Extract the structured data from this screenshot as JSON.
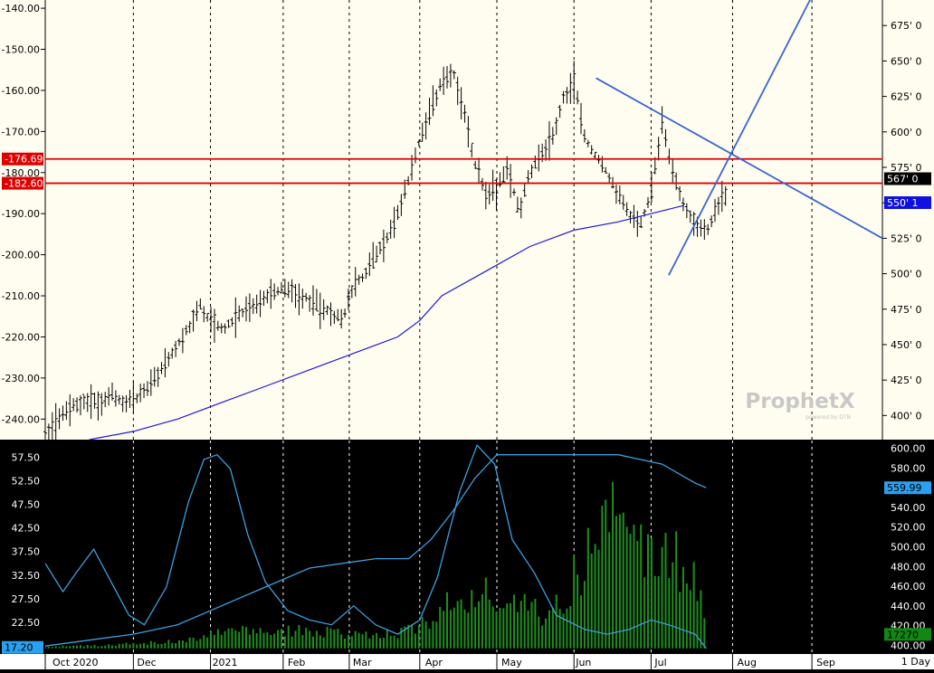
{
  "colors": {
    "upper_bg": "#fffdf0",
    "lower_bg": "#000000",
    "ma_line": "#1a1ad8",
    "trend_line": "#3a66d0",
    "resistance": "#e00000",
    "volume_bar": "#1f8f1f",
    "indicator_line": "#3aa0e0",
    "badge_price": "#000000",
    "badge_ma": "#1010e0",
    "badge_lower_right": "#2aa0f0",
    "badge_vol": "#118811"
  },
  "watermark": {
    "brand": "ProphetX",
    "tagline": "powered by DTN"
  },
  "timeframe_label": "1 Day",
  "chart_data": [
    {
      "type": "ohlc-bar",
      "panel": "upper",
      "x_ticks": [
        "Oct 2020",
        "Dec",
        "2021",
        "Feb",
        "Mar",
        "Apr",
        "May",
        "Jun",
        "Jul",
        "Aug",
        "Sep"
      ],
      "left_axis": {
        "ticks": [
          "-140.00",
          "-150.00",
          "-160.00",
          "-170.00",
          "-180.00",
          "-190.00",
          "-200.00",
          "-210.00",
          "-220.00",
          "-230.00",
          "-240.00"
        ],
        "range": [
          -245,
          -138
        ]
      },
      "right_axis": {
        "ticks": [
          "675' 0",
          "650' 0",
          "625' 0",
          "600' 0",
          "575' 0",
          "550' 0",
          "525' 0",
          "500' 0",
          "475' 0",
          "450' 0",
          "425' 0",
          "400' 0"
        ],
        "range": [
          383,
          693
        ]
      },
      "left_labels": [
        "-176.69",
        "-182.60"
      ],
      "right_labels": [
        "567' 0",
        "550' 1"
      ],
      "horizontal_lines": [
        -176.69,
        -182.6
      ],
      "close_path": [
        [
          0,
          -243
        ],
        [
          5,
          -241
        ],
        [
          10,
          -238
        ],
        [
          15,
          -236
        ],
        [
          20,
          -235
        ],
        [
          25,
          -236
        ],
        [
          30,
          -234
        ],
        [
          35,
          -236
        ],
        [
          40,
          -235
        ],
        [
          45,
          -233
        ],
        [
          50,
          -230
        ],
        [
          55,
          -226
        ],
        [
          60,
          -222
        ],
        [
          65,
          -218
        ],
        [
          70,
          -212
        ],
        [
          75,
          -216
        ],
        [
          80,
          -218
        ],
        [
          85,
          -216
        ],
        [
          90,
          -214
        ],
        [
          95,
          -213
        ],
        [
          100,
          -210
        ],
        [
          105,
          -209
        ],
        [
          110,
          -208
        ],
        [
          115,
          -210
        ],
        [
          120,
          -211
        ],
        [
          125,
          -213
        ],
        [
          130,
          -214
        ],
        [
          135,
          -216
        ],
        [
          140,
          -207
        ],
        [
          145,
          -205
        ],
        [
          150,
          -200
        ],
        [
          155,
          -196
        ],
        [
          160,
          -190
        ],
        [
          165,
          -182
        ],
        [
          170,
          -172
        ],
        [
          175,
          -165
        ],
        [
          180,
          -158
        ],
        [
          185,
          -155
        ],
        [
          190,
          -165
        ],
        [
          195,
          -178
        ],
        [
          200,
          -185
        ],
        [
          205,
          -184
        ],
        [
          210,
          -178
        ],
        [
          215,
          -190
        ],
        [
          220,
          -180
        ],
        [
          225,
          -176
        ],
        [
          230,
          -172
        ],
        [
          235,
          -162
        ],
        [
          240,
          -158
        ],
        [
          245,
          -172
        ],
        [
          250,
          -176
        ],
        [
          255,
          -180
        ],
        [
          260,
          -185
        ],
        [
          265,
          -190
        ],
        [
          270,
          -193
        ],
        [
          275,
          -185
        ],
        [
          280,
          -168
        ],
        [
          285,
          -180
        ],
        [
          290,
          -188
        ],
        [
          295,
          -192
        ],
        [
          300,
          -195
        ],
        [
          305,
          -188
        ],
        [
          310,
          -185
        ]
      ],
      "ma_path": [
        [
          20,
          -245
        ],
        [
          40,
          -243
        ],
        [
          60,
          -240
        ],
        [
          80,
          -236
        ],
        [
          100,
          -232
        ],
        [
          120,
          -228
        ],
        [
          140,
          -224
        ],
        [
          160,
          -220
        ],
        [
          170,
          -216
        ],
        [
          180,
          -210
        ],
        [
          200,
          -204
        ],
        [
          220,
          -198
        ],
        [
          240,
          -194
        ],
        [
          260,
          -192
        ],
        [
          275,
          -190
        ],
        [
          290,
          -188
        ]
      ],
      "trend_lines": [
        [
          [
            250,
            -157
          ],
          [
            380,
            -196
          ]
        ],
        [
          [
            283,
            -205
          ],
          [
            350,
            -135
          ]
        ]
      ]
    },
    {
      "type": "bar+line",
      "panel": "lower",
      "left_axis": {
        "ticks": [
          "57.50",
          "52.50",
          "47.50",
          "42.50",
          "37.50",
          "32.50",
          "27.50",
          "22.50"
        ],
        "range": [
          16,
          61
        ]
      },
      "right_axis": {
        "ticks": [
          "600.00",
          "580.00",
          "560.00",
          "540.00",
          "520.00",
          "500.00",
          "480.00",
          "460.00",
          "440.00",
          "420.00",
          "400.00"
        ],
        "range": [
          392,
          608
        ]
      },
      "left_labels": [
        "17.20"
      ],
      "right_labels": [
        "559.99",
        "17270"
      ],
      "oscillator_path": [
        [
          0,
          35
        ],
        [
          8,
          29
        ],
        [
          14,
          33
        ],
        [
          22,
          38
        ],
        [
          30,
          31
        ],
        [
          38,
          24
        ],
        [
          45,
          22
        ],
        [
          55,
          30
        ],
        [
          65,
          48
        ],
        [
          72,
          57
        ],
        [
          78,
          58
        ],
        [
          84,
          55
        ],
        [
          92,
          41
        ],
        [
          100,
          31
        ],
        [
          110,
          25
        ],
        [
          120,
          23
        ],
        [
          130,
          22
        ],
        [
          140,
          26
        ],
        [
          150,
          22
        ],
        [
          160,
          20
        ],
        [
          170,
          23
        ],
        [
          178,
          32
        ],
        [
          188,
          50
        ],
        [
          196,
          60
        ],
        [
          204,
          56
        ],
        [
          212,
          40
        ],
        [
          222,
          33
        ],
        [
          232,
          24
        ],
        [
          245,
          21
        ],
        [
          255,
          20
        ],
        [
          265,
          21
        ],
        [
          275,
          23
        ],
        [
          283,
          22
        ],
        [
          295,
          20
        ],
        [
          300,
          17
        ]
      ],
      "open_interest_path": [
        [
          0,
          17.5
        ],
        [
          40,
          20
        ],
        [
          60,
          22
        ],
        [
          80,
          26
        ],
        [
          100,
          30
        ],
        [
          120,
          34
        ],
        [
          150,
          36
        ],
        [
          165,
          36
        ],
        [
          175,
          40
        ],
        [
          185,
          46
        ],
        [
          195,
          53
        ],
        [
          205,
          58
        ],
        [
          220,
          58
        ],
        [
          235,
          58
        ],
        [
          260,
          58
        ],
        [
          280,
          56
        ],
        [
          295,
          52
        ],
        [
          300,
          51
        ]
      ],
      "volume_envelope": [
        [
          0,
          17.5
        ],
        [
          30,
          18
        ],
        [
          60,
          19
        ],
        [
          80,
          22
        ],
        [
          100,
          22
        ],
        [
          120,
          22
        ],
        [
          140,
          21
        ],
        [
          160,
          21
        ],
        [
          175,
          26
        ],
        [
          190,
          34
        ],
        [
          200,
          32
        ],
        [
          215,
          30
        ],
        [
          230,
          26
        ],
        [
          245,
          44
        ],
        [
          255,
          58
        ],
        [
          265,
          52
        ],
        [
          270,
          48
        ],
        [
          280,
          44
        ],
        [
          290,
          42
        ],
        [
          298,
          38
        ],
        [
          300,
          18
        ]
      ]
    }
  ]
}
